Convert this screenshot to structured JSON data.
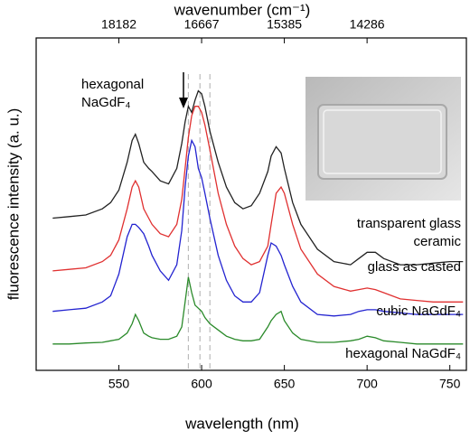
{
  "chart_data": {
    "type": "line",
    "xlabel": "wavelength (nm)",
    "ylabel": "fluorescence intensity (a. u.)",
    "x2label": "wavenumber (cm⁻¹)",
    "annotation": "hexagonal NaGdF₄",
    "xlim": [
      500,
      760
    ],
    "xticks": [
      550,
      600,
      650,
      700,
      750
    ],
    "x2ticks": [
      18182,
      16667,
      15385,
      14286
    ],
    "ylim": [
      -7,
      100
    ],
    "reference_lines": [
      592,
      599,
      605
    ],
    "x": [
      510,
      520,
      530,
      540,
      545,
      550,
      555,
      558,
      560,
      562,
      565,
      568,
      570,
      575,
      580,
      585,
      588,
      590,
      592,
      594,
      596,
      598,
      600,
      602,
      605,
      610,
      615,
      620,
      625,
      630,
      635,
      640,
      642,
      645,
      648,
      650,
      655,
      660,
      670,
      680,
      690,
      695,
      700,
      705,
      710,
      720,
      730,
      740,
      750,
      758
    ],
    "series": [
      {
        "name": "transparent glass ceramic",
        "color": "#222222",
        "values": [
          42,
          42.5,
          43,
          45,
          47,
          51,
          60,
          67,
          69,
          66,
          60,
          58,
          57,
          54,
          53,
          58,
          66,
          73,
          78,
          76,
          80,
          83,
          82,
          78,
          70,
          60,
          52,
          47,
          45,
          46,
          50,
          57,
          62,
          65,
          63,
          58,
          47,
          40,
          32,
          28,
          27,
          29,
          31,
          31,
          29,
          27,
          27,
          27.5,
          28,
          28
        ]
      },
      {
        "name": "glass as casted",
        "color": "#e03030",
        "values": [
          25,
          25.5,
          26,
          28,
          30,
          35,
          45,
          52,
          54,
          52,
          45,
          42,
          40,
          37,
          36,
          40,
          48,
          58,
          68,
          75,
          78,
          78,
          76,
          72,
          64,
          50,
          40,
          33,
          29,
          27,
          28,
          33,
          40,
          50,
          52,
          50,
          40,
          32,
          24,
          20,
          18.5,
          19,
          19.5,
          19,
          18,
          16,
          15.5,
          15,
          15,
          15
        ]
      },
      {
        "name": "cubic NaGdF₄",
        "color": "#2323d0",
        "values": [
          12,
          12.5,
          13,
          15,
          17,
          24,
          36,
          40,
          40,
          39,
          37,
          33,
          30,
          25,
          22,
          27,
          38,
          52,
          62,
          67,
          65,
          58,
          55,
          50,
          42,
          30,
          22,
          17,
          15,
          15,
          18,
          30,
          34,
          33,
          30,
          27,
          20,
          15,
          11,
          10.5,
          11,
          12,
          12.5,
          12.5,
          12,
          11.5,
          11,
          11,
          11,
          11
        ]
      },
      {
        "name": "hexagonal NaGdF₄",
        "color": "#2a8a2a",
        "values": [
          1.5,
          1.5,
          1.8,
          2,
          2.5,
          3,
          5,
          8,
          11,
          9,
          5,
          4,
          3.5,
          3,
          3,
          4,
          7,
          15,
          23,
          18,
          14,
          13,
          12,
          10,
          8,
          6,
          4,
          3,
          2.5,
          2.5,
          3,
          7,
          9,
          11,
          12,
          9,
          5,
          3,
          2,
          2,
          2.5,
          3,
          4,
          3.5,
          2.5,
          2,
          1.5,
          1.5,
          1.5,
          1.5
        ]
      }
    ]
  }
}
